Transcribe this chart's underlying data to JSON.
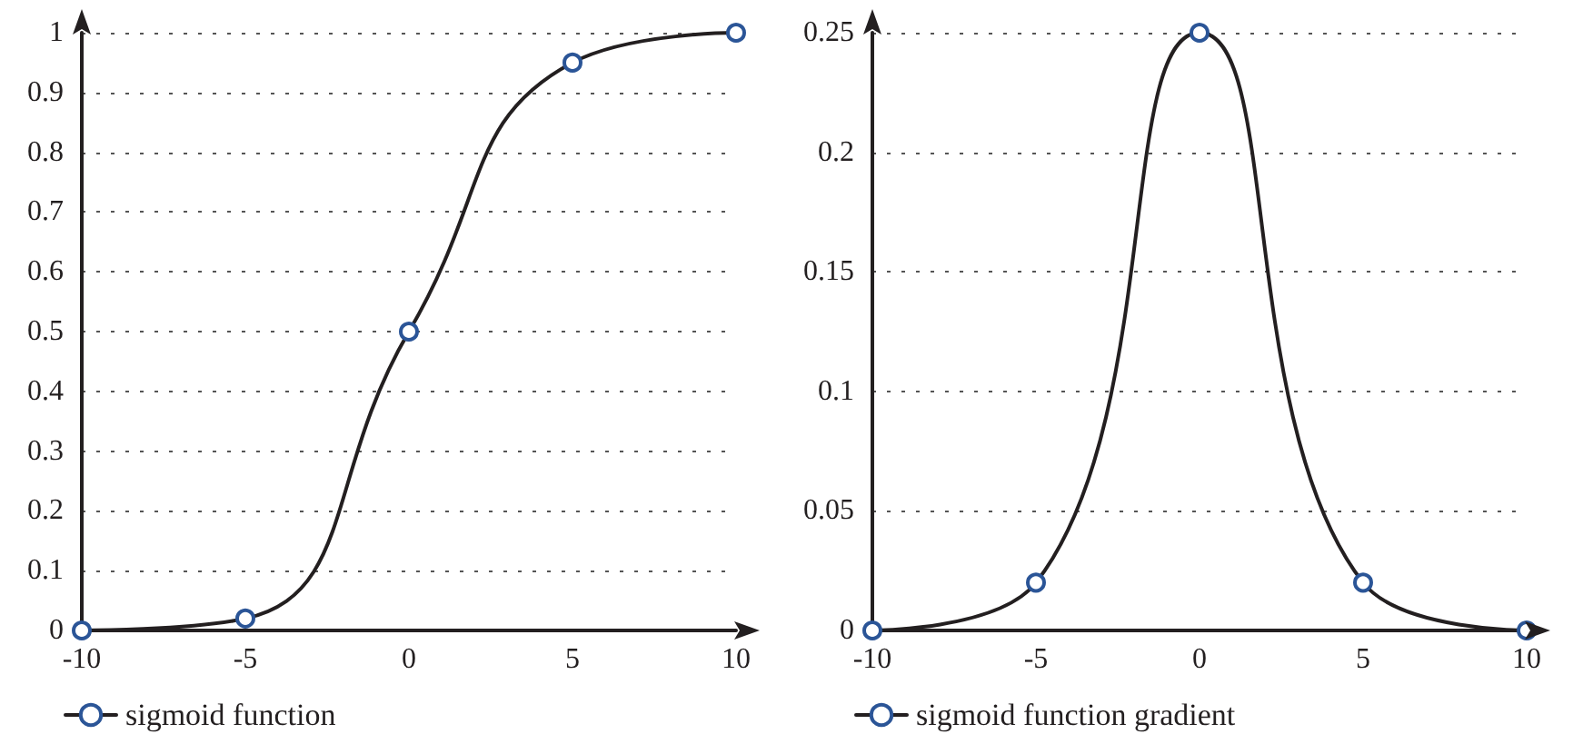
{
  "chart_data": [
    {
      "type": "line",
      "x": [
        -10,
        -5,
        0,
        5,
        10
      ],
      "series": [
        {
          "name": "sigmoid function",
          "color": "#231f20",
          "values": [
            0,
            0.02,
            0.5,
            0.95,
            1
          ]
        }
      ],
      "xlim": [
        -10,
        10
      ],
      "xticks": [
        -10,
        -5,
        0,
        5,
        10
      ],
      "ylim": [
        0,
        1
      ],
      "yticks": [
        0,
        0.1,
        0.2,
        0.3,
        0.4,
        0.5,
        0.6,
        0.7,
        0.8,
        0.9,
        1
      ],
      "grid": "y",
      "legend": "bottom left",
      "marker": "circle",
      "line_style": "solid"
    },
    {
      "type": "line",
      "x": [
        -10,
        -5,
        0,
        5,
        10
      ],
      "series": [
        {
          "name": "sigmoid function gradient",
          "color": "#231f20",
          "values": [
            0,
            0.02,
            0.25,
            0.02,
            0
          ]
        }
      ],
      "xlim": [
        -10,
        10
      ],
      "xticks": [
        -10,
        -5,
        0,
        5,
        10
      ],
      "ylim": [
        0,
        0.25
      ],
      "yticks": [
        0,
        0.05,
        0.1,
        0.15,
        0.2,
        0.25
      ],
      "grid": "y",
      "legend": "bottom left",
      "marker": "circle",
      "line_style": "solid"
    }
  ]
}
